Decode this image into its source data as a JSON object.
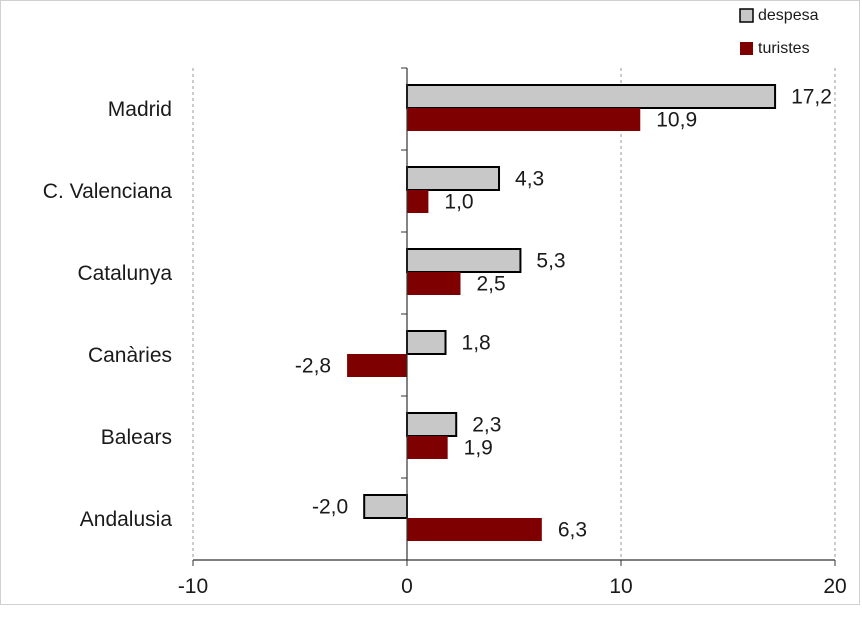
{
  "chart_data": {
    "type": "bar",
    "orientation": "horizontal",
    "title": "",
    "categories": [
      "Madrid",
      "C. Valenciana",
      "Catalunya",
      "Canàries",
      "Balears",
      "Andalusia"
    ],
    "series": [
      {
        "name": "despesa",
        "values": [
          17.2,
          4.3,
          5.3,
          1.8,
          2.3,
          -2.0
        ],
        "labels": [
          "17,2",
          "4,3",
          "5,3",
          "1,8",
          "2,3",
          "-2,0"
        ],
        "color": "#c8c8c8",
        "edge_color": "#000000"
      },
      {
        "name": "turistes",
        "values": [
          10.9,
          1.0,
          2.5,
          -2.8,
          1.9,
          6.3
        ],
        "labels": [
          "10,9",
          "1,0",
          "2,5",
          "-2,8",
          "1,9",
          "6,3"
        ],
        "color": "#7f0000"
      }
    ],
    "xlim": [
      -10,
      20
    ],
    "xticks": [
      -10,
      0,
      10,
      20
    ],
    "xtick_labels": [
      "-10",
      "0",
      "10",
      "20"
    ],
    "grid": "vertical dashed",
    "legend": "top-right"
  }
}
